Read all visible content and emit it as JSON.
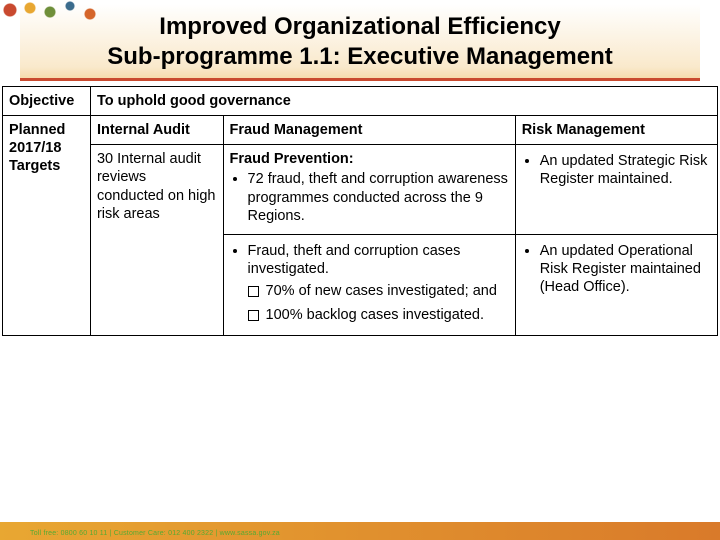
{
  "title_line1": "Improved Organizational Efficiency",
  "title_line2": "Sub-programme 1.1: Executive Management",
  "row_objective_label": "Objective",
  "row_objective_value": "To uphold good governance",
  "row_targets_label_l1": "Planned",
  "row_targets_label_l2": "2017/18",
  "row_targets_label_l3": "Targets",
  "header_internal_audit": "Internal Audit",
  "header_fraud_mgmt": "Fraud Management",
  "header_risk_mgmt": "Risk Management",
  "cell_internal_audit": "30 Internal audit reviews conducted on high risk areas",
  "fraud_prev_heading": "Fraud Prevention:",
  "fraud_prev_bullet": "72 fraud, theft and corruption awareness programmes conducted across the 9 Regions.",
  "fraud_inv_bullet": "Fraud, theft and corruption cases investigated.",
  "fraud_sq1": "70% of new cases investigated; and",
  "fraud_sq2": "100% backlog cases investigated.",
  "risk_bullet1": "An updated Strategic Risk Register maintained.",
  "risk_bullet2": "An updated Operational Risk Register maintained (Head Office).",
  "footer_text": "Toll free: 0800 60 10 11 | Customer Care: 012 400 2322 | www.sassa.gov.za",
  "colors": {
    "underline": "#c94a2f",
    "footer_grad_start": "#e8a732",
    "footer_grad_end": "#d97a2a",
    "border": "#000000"
  }
}
